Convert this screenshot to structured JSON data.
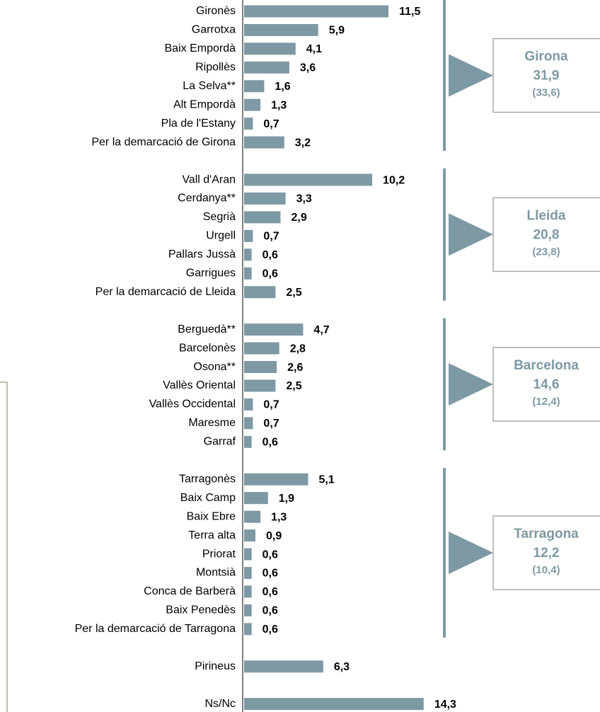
{
  "chart_data": {
    "type": "bar",
    "orientation": "horizontal",
    "color": "#7d99a4",
    "groups": [
      {
        "categories": [
          "Gironès",
          "Garrotxa",
          "Baix Empordà",
          "Ripollès",
          "La Selva**",
          "Alt Empordà",
          "Pla de l'Estany",
          "Per la demarcació de Girona"
        ],
        "values": [
          11.5,
          5.9,
          4.1,
          3.6,
          1.6,
          1.3,
          0.7,
          3.2
        ],
        "value_labels": [
          "11,5",
          "5,9",
          "4,1",
          "3,6",
          "1,6",
          "1,3",
          "0,7",
          "3,2"
        ],
        "summary": {
          "name": "Girona",
          "value": 31.9,
          "value_label": "31,9",
          "previous": 33.6,
          "previous_label": "(33,6)"
        }
      },
      {
        "categories": [
          "Vall d'Aran",
          "Cerdanya**",
          "Segrià",
          "Urgell",
          "Pallars Jussà",
          "Garrigues",
          "Per la demarcació de Lleida"
        ],
        "values": [
          10.2,
          3.3,
          2.9,
          0.7,
          0.6,
          0.6,
          2.5
        ],
        "value_labels": [
          "10,2",
          "3,3",
          "2,9",
          "0,7",
          "0,6",
          "0,6",
          "2,5"
        ],
        "summary": {
          "name": "Lleida",
          "value": 20.8,
          "value_label": "20,8",
          "previous": 23.8,
          "previous_label": "(23,8)"
        }
      },
      {
        "categories": [
          "Berguedà**",
          "Barcelonès",
          "Osona**",
          "Vallès Oriental",
          "Vallès Occidental",
          "Maresme",
          "Garraf"
        ],
        "values": [
          4.7,
          2.8,
          2.6,
          2.5,
          0.7,
          0.7,
          0.6
        ],
        "value_labels": [
          "4,7",
          "2,8",
          "2,6",
          "2,5",
          "0,7",
          "0,7",
          "0,6"
        ],
        "summary": {
          "name": "Barcelona",
          "value": 14.6,
          "value_label": "14,6",
          "previous": 12.4,
          "previous_label": "(12,4)"
        }
      },
      {
        "categories": [
          "Tarragonès",
          "Baix Camp",
          "Baix Ebre",
          "Terra alta",
          "Priorat",
          "Montsià",
          "Conca de Barberà",
          "Baix Penedès",
          "Per la demarcació de Tarragona"
        ],
        "values": [
          5.1,
          1.9,
          1.3,
          0.9,
          0.6,
          0.6,
          0.6,
          0.6,
          0.6
        ],
        "value_labels": [
          "5,1",
          "1,9",
          "1,3",
          "0,9",
          "0,6",
          "0,6",
          "0,6",
          "0,6",
          "0,6"
        ],
        "summary": {
          "name": "Tarragona",
          "value": 12.2,
          "value_label": "12,2",
          "previous": 10.4,
          "previous_label": "(10,4)"
        }
      },
      {
        "categories": [
          "Pirineus"
        ],
        "values": [
          6.3
        ],
        "value_labels": [
          "6,3"
        ]
      },
      {
        "categories": [
          "Ns/Nc"
        ],
        "values": [
          14.3
        ],
        "value_labels": [
          "14,3"
        ]
      }
    ]
  }
}
